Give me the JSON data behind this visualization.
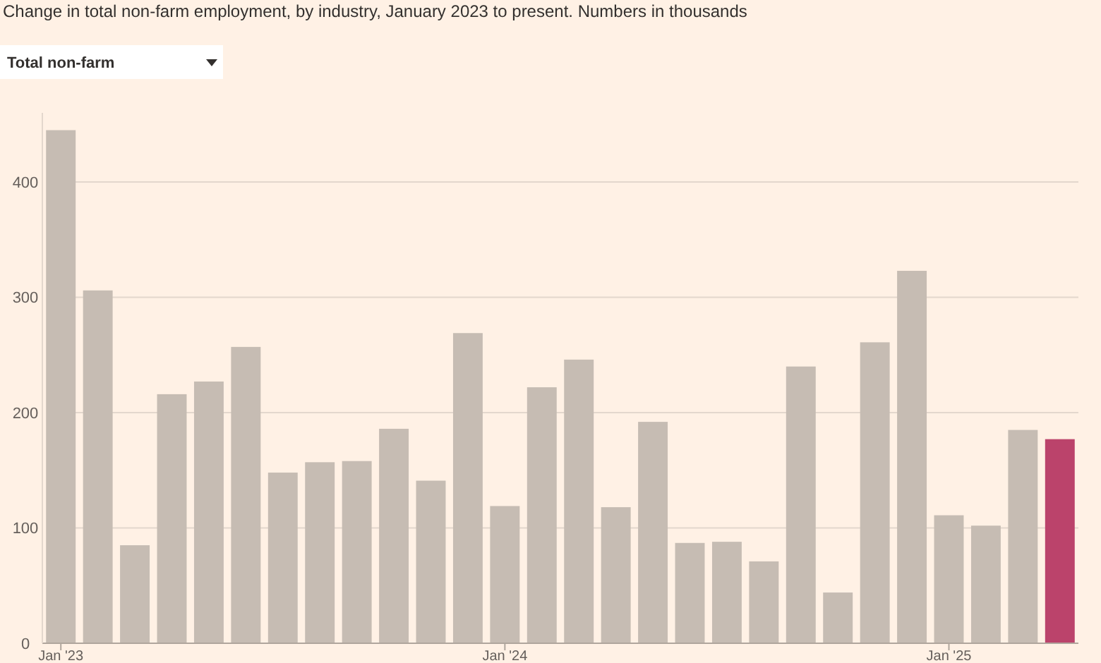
{
  "chart_data": {
    "type": "bar",
    "subtitle": "Change in total non-farm employment, by industry, January 2023 to present. Numbers in thousands",
    "annotations": [
      "Total non-farm"
    ],
    "categories": [
      "Jan '23",
      null,
      null,
      null,
      null,
      null,
      null,
      null,
      null,
      null,
      null,
      null,
      "Jan '24",
      null,
      null,
      null,
      null,
      null,
      null,
      null,
      null,
      null,
      null,
      null,
      "Jan '25",
      null,
      null,
      null
    ],
    "values": [
      445,
      306,
      85,
      216,
      227,
      257,
      148,
      157,
      158,
      186,
      141,
      269,
      119,
      222,
      246,
      118,
      192,
      87,
      88,
      71,
      240,
      44,
      261,
      323,
      111,
      102,
      185,
      177
    ],
    "colors": [
      "#c6bcb3",
      "#c6bcb3",
      "#c6bcb3",
      "#c6bcb3",
      "#c6bcb3",
      "#c6bcb3",
      "#c6bcb3",
      "#c6bcb3",
      "#c6bcb3",
      "#c6bcb3",
      "#c6bcb3",
      "#c6bcb3",
      "#c6bcb3",
      "#c6bcb3",
      "#c6bcb3",
      "#c6bcb3",
      "#c6bcb3",
      "#c6bcb3",
      "#c6bcb3",
      "#c6bcb3",
      "#c6bcb3",
      "#c6bcb3",
      "#c6bcb3",
      "#c6bcb3",
      "#c6bcb3",
      "#c6bcb3",
      "#c6bcb3",
      "#bb436b"
    ],
    "ylim": [
      0,
      460
    ],
    "yticks": [
      0,
      100,
      200,
      300,
      400
    ],
    "grid": "y"
  }
}
